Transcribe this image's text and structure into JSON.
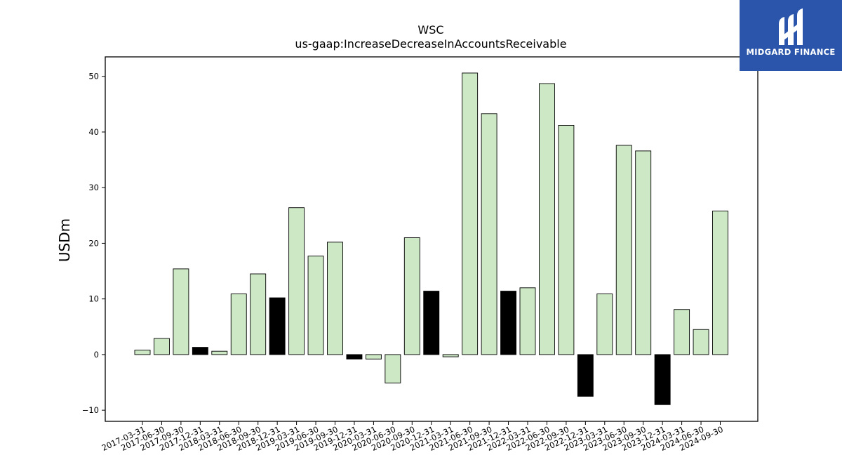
{
  "chart_data": {
    "type": "bar",
    "title": "WSC",
    "subtitle": "us-gaap:IncreaseDecreaseInAccountsReceivable",
    "xlabel": "",
    "ylabel": "USDm",
    "ylim": [
      -12,
      53.5
    ],
    "yticks": [
      -10,
      0,
      10,
      20,
      30,
      40,
      50
    ],
    "grid": false,
    "categories": [
      "2017-03-31",
      "2017-06-30",
      "2017-09-30",
      "2017-12-31",
      "2018-03-31",
      "2018-06-30",
      "2018-09-30",
      "2018-12-31",
      "2019-03-31",
      "2019-06-30",
      "2019-09-30",
      "2019-12-31",
      "2020-03-31",
      "2020-06-30",
      "2020-09-30",
      "2020-12-31",
      "2021-03-31",
      "2021-06-30",
      "2021-09-30",
      "2021-12-31",
      "2022-03-31",
      "2022-06-30",
      "2022-09-30",
      "2022-12-31",
      "2023-03-31",
      "2023-06-30",
      "2023-09-30",
      "2023-12-31",
      "2024-03-31",
      "2024-06-30",
      "2024-09-30"
    ],
    "values": [
      0.8,
      2.9,
      15.4,
      1.3,
      0.6,
      10.9,
      14.5,
      10.2,
      26.4,
      17.7,
      20.2,
      -0.8,
      -0.8,
      -5.1,
      21.0,
      11.4,
      -0.4,
      50.6,
      43.3,
      11.4,
      12.0,
      48.7,
      41.2,
      -7.5,
      10.9,
      37.6,
      36.6,
      -9.0,
      8.1,
      4.5,
      25.8
    ],
    "highlight": [
      false,
      false,
      false,
      true,
      false,
      false,
      false,
      true,
      false,
      false,
      false,
      true,
      false,
      false,
      false,
      true,
      false,
      false,
      false,
      true,
      false,
      false,
      false,
      true,
      false,
      false,
      false,
      true,
      false,
      false,
      false
    ],
    "colors": {
      "bar": "#cde8c5",
      "highlight": "#000000",
      "edge": "#000000"
    }
  },
  "logo": {
    "text": "MIDGARD FINANCE",
    "background": "#2a55aa"
  }
}
